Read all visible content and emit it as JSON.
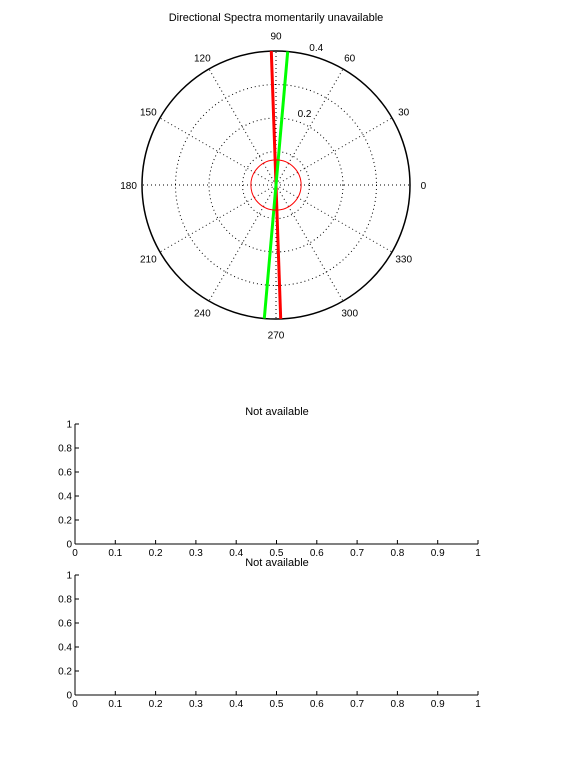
{
  "chart_data": [
    {
      "type": "polar",
      "title": "Directional Spectra momentarily unavailable",
      "angle_ticks": [
        0,
        30,
        60,
        90,
        120,
        150,
        180,
        210,
        240,
        270,
        300,
        330
      ],
      "angle_tick_labels": [
        "0",
        "30",
        "60",
        "90",
        "120",
        "150",
        "180",
        "210",
        "240",
        "270",
        "300",
        "330"
      ],
      "radial_ticks": [
        0.2,
        0.4
      ],
      "radial_tick_labels": [
        "0.2",
        "0.4"
      ],
      "rmax": 0.4,
      "series": [
        {
          "color": "#ff0000",
          "points": [
            [
              92,
              0.4
            ],
            [
              272,
              0.4
            ]
          ]
        },
        {
          "color": "#00ff00",
          "points": [
            [
              85,
              0.4
            ],
            [
              265,
              0.4
            ]
          ]
        },
        {
          "type": "circle",
          "color": "#ff0000",
          "radius": 0.075
        }
      ]
    },
    {
      "type": "line",
      "title": "Not available",
      "xlim": [
        0,
        1
      ],
      "ylim": [
        0,
        1
      ],
      "x_ticks": [
        "0",
        "0.1",
        "0.2",
        "0.3",
        "0.4",
        "0.5",
        "0.6",
        "0.7",
        "0.8",
        "0.9",
        "1"
      ],
      "y_ticks": [
        "0",
        "0.2",
        "0.4",
        "0.6",
        "0.8",
        "1"
      ],
      "series": []
    },
    {
      "type": "line",
      "title": "Not available",
      "xlim": [
        0,
        1
      ],
      "ylim": [
        0,
        1
      ],
      "x_ticks": [
        "0",
        "0.1",
        "0.2",
        "0.3",
        "0.4",
        "0.5",
        "0.6",
        "0.7",
        "0.8",
        "0.9",
        "1"
      ],
      "y_ticks": [
        "0",
        "0.2",
        "0.4",
        "0.6",
        "0.8",
        "1"
      ],
      "series": []
    }
  ]
}
